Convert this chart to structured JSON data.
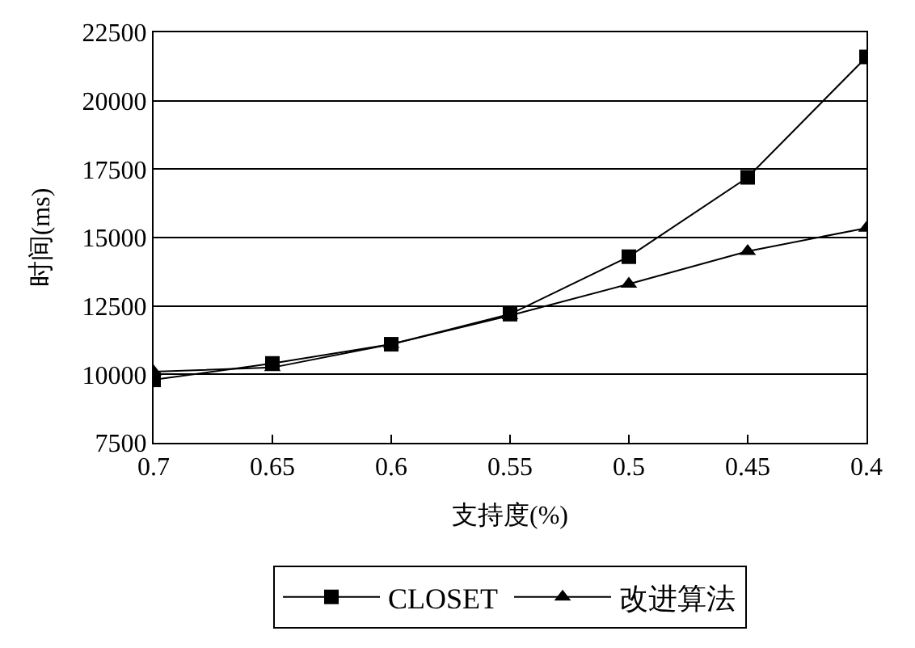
{
  "chart_data": {
    "type": "line",
    "xlabel": "支持度(%)",
    "ylabel": "时间(ms)",
    "categories": [
      "0.7",
      "0.65",
      "0.6",
      "0.55",
      "0.5",
      "0.45",
      "0.4"
    ],
    "series": [
      {
        "name": "CLOSET",
        "color": "#000000",
        "marker": "square",
        "values": [
          9800,
          10400,
          11100,
          12200,
          14300,
          17200,
          21600
        ]
      },
      {
        "name": "改进算法",
        "color": "#000000",
        "marker": "triangle",
        "values": [
          10100,
          10250,
          11100,
          12150,
          13300,
          14500,
          15350
        ]
      }
    ],
    "ylim": [
      7500,
      22500
    ],
    "yticks": [
      7500,
      10000,
      12500,
      15000,
      17500,
      20000,
      22500
    ],
    "grid": "y",
    "legend": "bottom",
    "line_style": "solid"
  }
}
